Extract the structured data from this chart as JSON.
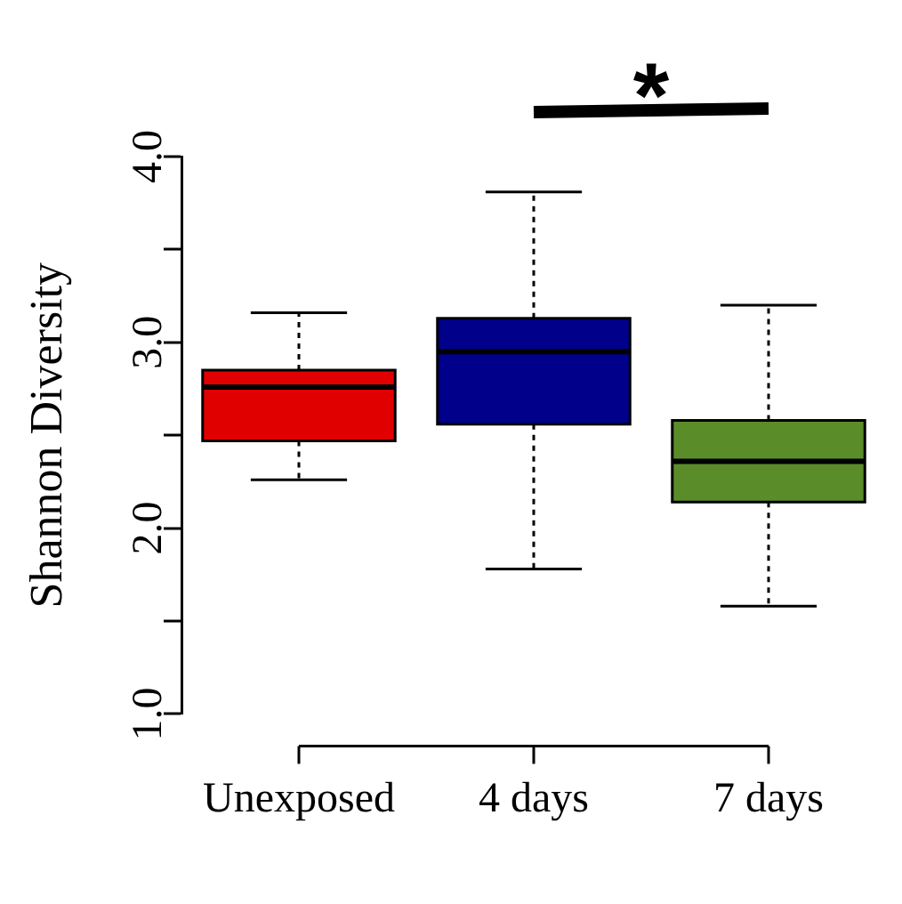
{
  "chart_data": {
    "type": "box",
    "ylabel": "Shannon Diversity",
    "categories": [
      "Unexposed",
      "4 days",
      "7 days"
    ],
    "colors": [
      "#e00000",
      "#00008b",
      "#5b8c2a"
    ],
    "boxes": [
      {
        "low": 2.26,
        "q1": 2.47,
        "median": 2.76,
        "q3": 2.85,
        "high": 3.16
      },
      {
        "low": 1.78,
        "q1": 2.56,
        "median": 2.95,
        "q3": 3.13,
        "high": 3.81
      },
      {
        "low": 1.58,
        "q1": 2.14,
        "median": 2.36,
        "q3": 2.58,
        "high": 3.2
      }
    ],
    "ylim": [
      1,
      4
    ],
    "yticks": [
      {
        "value": 1,
        "label": "1.0"
      },
      {
        "value": 1.5,
        "label": null
      },
      {
        "value": 2,
        "label": "2.0"
      },
      {
        "value": 2.5,
        "label": null
      },
      {
        "value": 3,
        "label": "3.0"
      },
      {
        "value": 3.5,
        "label": null
      },
      {
        "value": 4,
        "label": "4.0"
      }
    ],
    "annotations": [
      "*"
    ],
    "grid": false,
    "legend": false
  }
}
